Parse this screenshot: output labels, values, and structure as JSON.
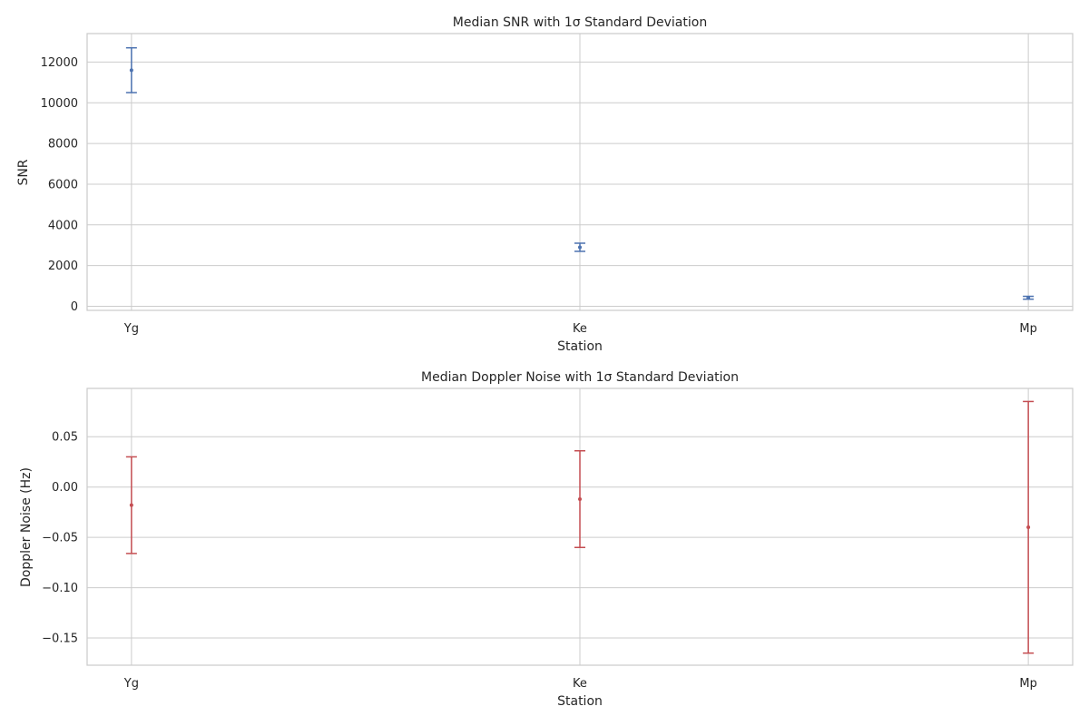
{
  "chart_data": [
    {
      "type": "scatter",
      "title": "Median SNR with 1σ Standard Deviation",
      "xlabel": "Station",
      "ylabel": "SNR",
      "categories": [
        "Yg",
        "Ke",
        "Mp"
      ],
      "series": [
        {
          "values": [
            11600,
            2900,
            420
          ],
          "std": [
            1100,
            200,
            70
          ],
          "color": "#4c72b0"
        }
      ],
      "ylim": [
        -200,
        13400
      ],
      "yticks": [
        0,
        2000,
        4000,
        6000,
        8000,
        10000,
        12000
      ],
      "ytick_labels": [
        "0",
        "2000",
        "4000",
        "6000",
        "8000",
        "10000",
        "12000"
      ],
      "grid": true,
      "error_bars": true
    },
    {
      "type": "scatter",
      "title": "Median Doppler Noise with 1σ Standard Deviation",
      "xlabel": "Station",
      "ylabel": "Doppler Noise (Hz)",
      "categories": [
        "Yg",
        "Ke",
        "Mp"
      ],
      "series": [
        {
          "values": [
            -0.018,
            -0.012,
            -0.04
          ],
          "std": [
            0.048,
            0.048,
            0.125
          ],
          "color": "#c44e52"
        }
      ],
      "ylim": [
        -0.177,
        0.098
      ],
      "yticks": [
        -0.15,
        -0.1,
        -0.05,
        0.0,
        0.05
      ],
      "ytick_labels": [
        "−0.15",
        "−0.10",
        "−0.05",
        "0.00",
        "0.05"
      ],
      "grid": true,
      "error_bars": true
    }
  ]
}
